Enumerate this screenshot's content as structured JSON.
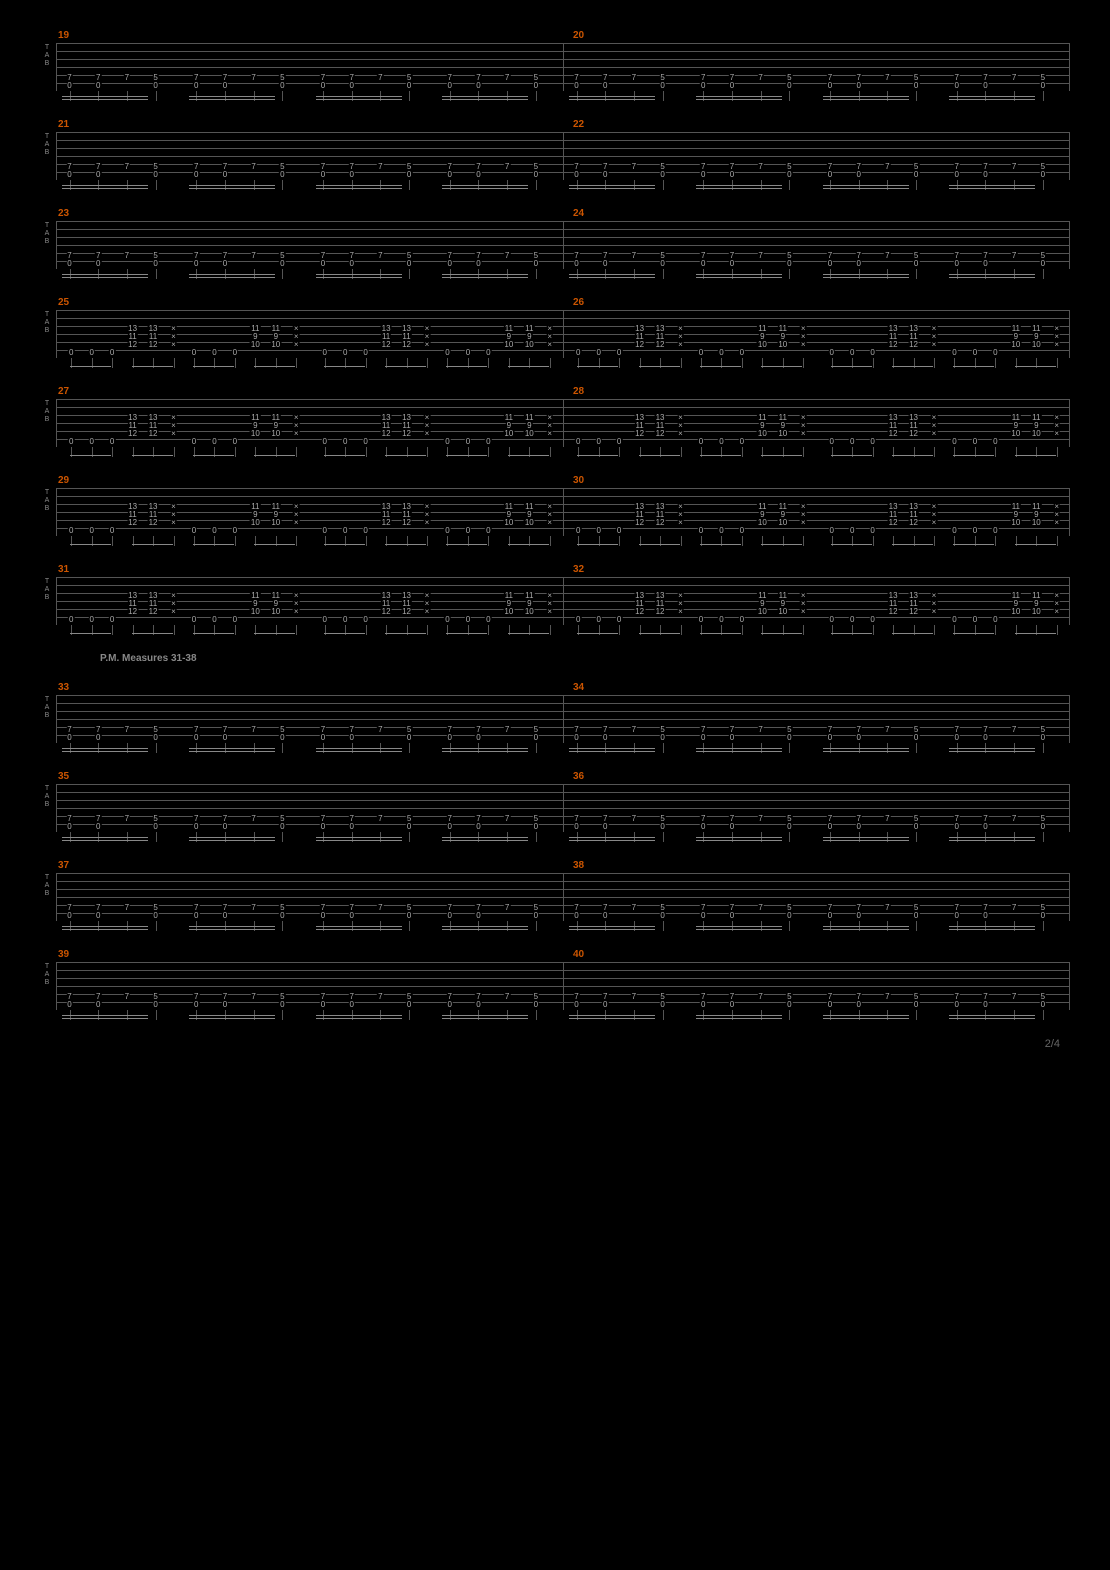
{
  "page_number": "2/4",
  "background_color": "#000000",
  "line_color": "#555555",
  "measure_number_color": "#cc5500",
  "text_color": "#aaaaaa",
  "annotation_color": "#888888",
  "tab_clef_letters": [
    "T",
    "A",
    "B"
  ],
  "annotation_text": "P.M.    Measures 31-38",
  "annotation_after_row_index": 6,
  "strings_count": 6,
  "rows": [
    {
      "measures": [
        19,
        20
      ],
      "pattern": "typeA"
    },
    {
      "measures": [
        21,
        22
      ],
      "pattern": "typeA"
    },
    {
      "measures": [
        23,
        24
      ],
      "pattern": "typeA"
    },
    {
      "measures": [
        25,
        26
      ],
      "pattern": "typeB"
    },
    {
      "measures": [
        27,
        28
      ],
      "pattern": "typeB"
    },
    {
      "measures": [
        29,
        30
      ],
      "pattern": "typeB"
    },
    {
      "measures": [
        31,
        32
      ],
      "pattern": "typeB"
    },
    {
      "measures": [
        33,
        34
      ],
      "pattern": "typeA"
    },
    {
      "measures": [
        35,
        36
      ],
      "pattern": "typeA"
    },
    {
      "measures": [
        37,
        38
      ],
      "pattern": "typeA"
    },
    {
      "measures": [
        39,
        40
      ],
      "pattern": "typeA"
    }
  ],
  "patterns": {
    "typeA": {
      "description": "sixteenth riff",
      "groups_per_measure": 4,
      "group": [
        {
          "frets": {
            "s5": "7",
            "s6": "0"
          }
        },
        {
          "frets": {
            "s5": "7",
            "s6": "0"
          }
        },
        {
          "frets": {
            "s5": "7"
          }
        },
        {
          "frets": {
            "s5": "5",
            "s6": "0"
          }
        }
      ],
      "notes_per_group": 4
    },
    "typeB": {
      "description": "chord pattern with mutes",
      "halves_per_measure": 2,
      "half": [
        {
          "frets": {
            "s6": "0"
          }
        },
        {
          "frets": {
            "s6": "0"
          }
        },
        {
          "frets": {
            "s6": "0"
          }
        },
        {
          "frets": {
            "s3": "13",
            "s4": "11",
            "s5": "12"
          }
        },
        {
          "frets": {
            "s3": "13",
            "s4": "11",
            "s5": "12"
          }
        },
        {
          "frets": {
            "s3": "×",
            "s4": "×",
            "s5": "×"
          },
          "mute": true
        },
        {
          "frets": {
            "s6": "0"
          }
        },
        {
          "frets": {
            "s6": "0"
          }
        },
        {
          "frets": {
            "s6": "0"
          }
        },
        {
          "frets": {
            "s3": "11",
            "s4": "9",
            "s5": "10"
          }
        },
        {
          "frets": {
            "s3": "11",
            "s4": "9",
            "s5": "10"
          }
        },
        {
          "frets": {
            "s3": "×",
            "s4": "×",
            "s5": "×"
          },
          "mute": true
        }
      ]
    }
  }
}
